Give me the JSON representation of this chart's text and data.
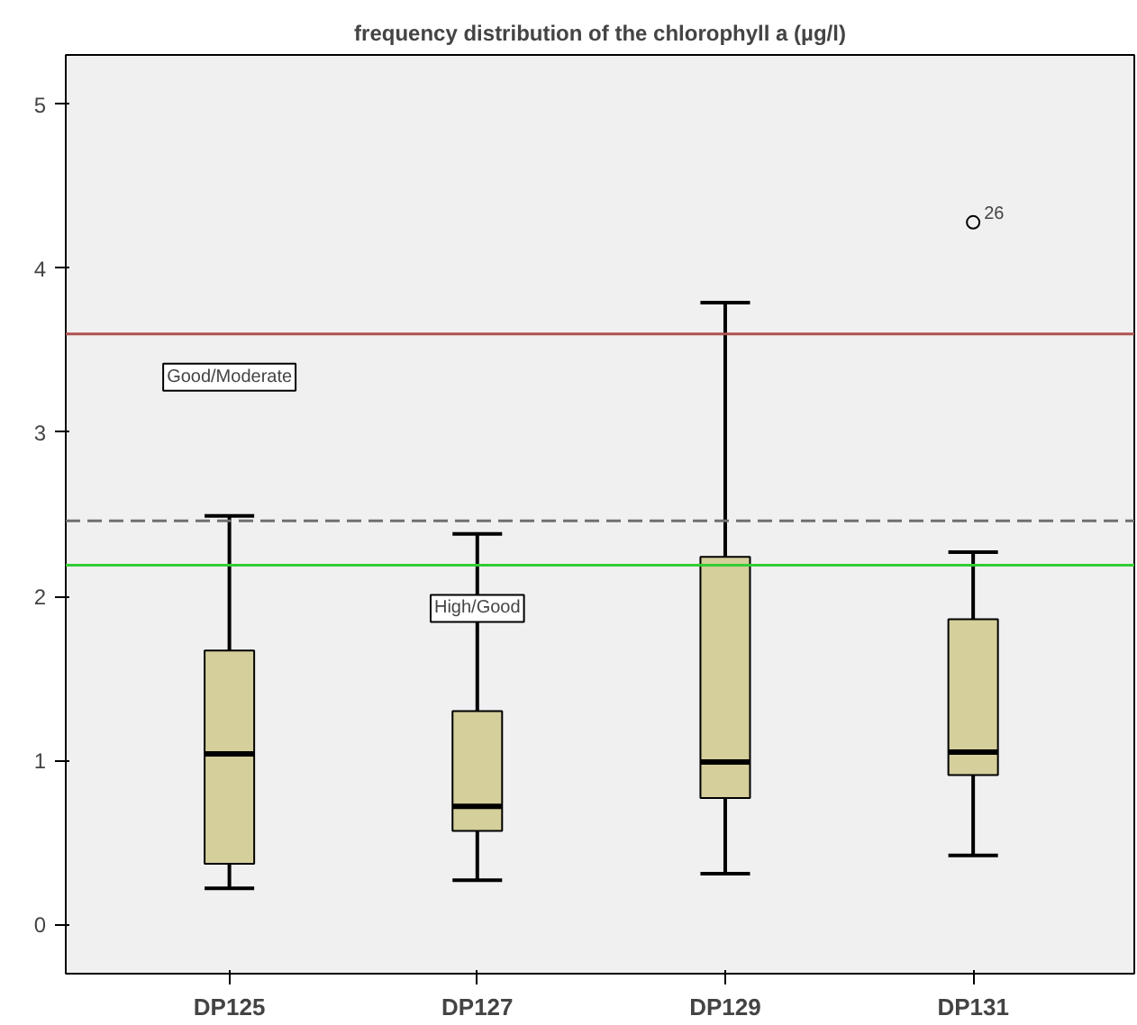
{
  "chart_data": {
    "type": "box",
    "title": "frequency distribution of the chlorophyll a (µg/l)",
    "categories": [
      "DP125",
      "DP127",
      "DP129",
      "DP131"
    ],
    "boxes": [
      {
        "low": 0.22,
        "q1": 0.37,
        "median": 1.04,
        "q3": 1.67,
        "high": 2.49
      },
      {
        "low": 0.27,
        "q1": 0.57,
        "median": 0.72,
        "q3": 1.3,
        "high": 2.38
      },
      {
        "low": 0.31,
        "q1": 0.77,
        "median": 0.99,
        "q3": 2.24,
        "high": 3.79
      },
      {
        "low": 0.42,
        "q1": 0.91,
        "median": 1.05,
        "q3": 1.86,
        "high": 2.27,
        "outliers": [
          4.28
        ]
      }
    ],
    "color": "#d4cf9b",
    "ylim": [
      -0.3,
      5.3
    ],
    "yticks": [
      0,
      1,
      2,
      3,
      4,
      5
    ],
    "grid": false,
    "ref_lines": [
      {
        "axis": "y",
        "value": 3.6,
        "color": "#b05050",
        "line_style": "solid",
        "label": "Good/Moderate"
      },
      {
        "axis": "y",
        "value": 2.46,
        "color": "#707070",
        "line_style": "dashed"
      },
      {
        "axis": "y",
        "value": 2.19,
        "color": "#33cc33",
        "line_style": "solid",
        "label": "High/Good"
      }
    ],
    "annotations": [
      "26"
    ]
  }
}
